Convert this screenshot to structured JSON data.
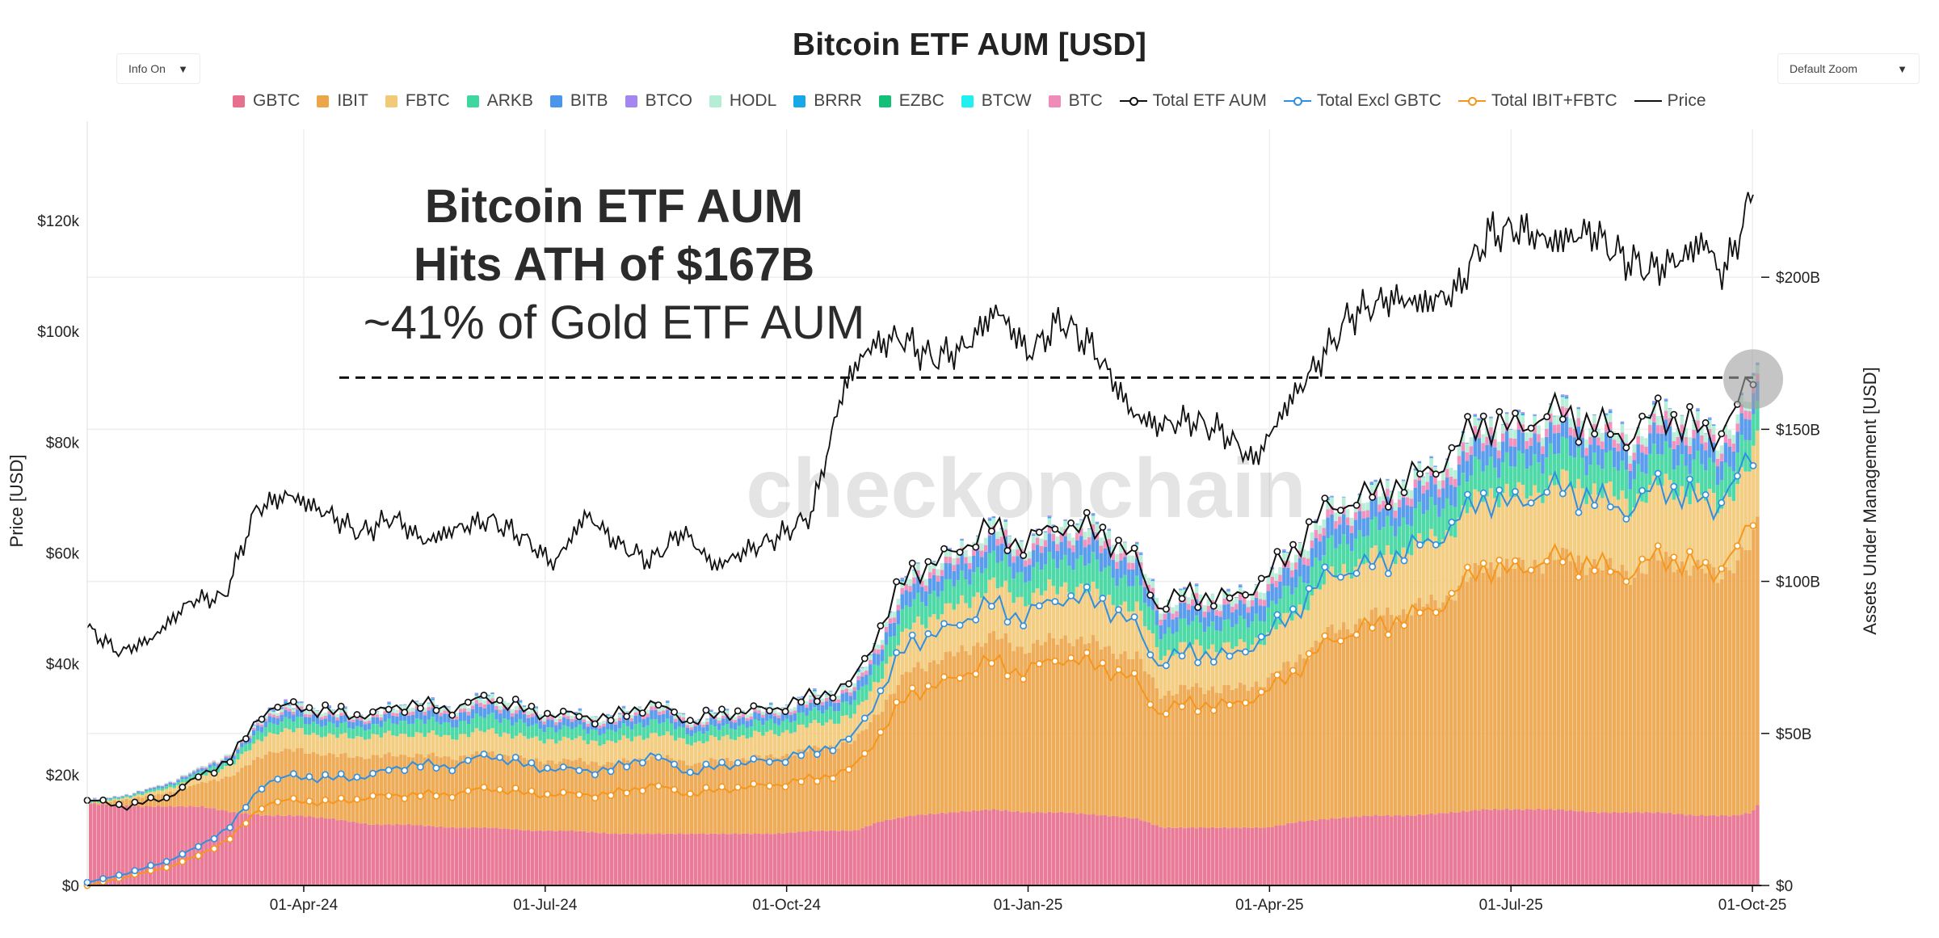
{
  "controls": {
    "info_toggle": "Info On",
    "zoom_select": "Default Zoom",
    "caret": "▼"
  },
  "watermark": "checkonchain",
  "chart_data": {
    "type": "area",
    "title": "Bitcoin ETF AUM [USD]",
    "annotation": {
      "line1": "Bitcoin ETF AUM",
      "line2": "Hits ATH of $167B",
      "line3": "~41% of Gold ETF AUM",
      "ath_value": 167
    },
    "x_ticks": [
      "01-Apr-24",
      "01-Jul-24",
      "01-Oct-24",
      "01-Jan-25",
      "01-Apr-25",
      "01-Jul-25",
      "01-Oct-25"
    ],
    "x_tick_months": [
      2.69,
      5.69,
      8.69,
      11.69,
      14.69,
      17.69,
      20.69
    ],
    "x_range_months": [
      0,
      20.8
    ],
    "left_axis": {
      "label": "Price [USD]",
      "range": [
        0,
        135000
      ],
      "ticks": [
        0,
        20000,
        40000,
        60000,
        80000,
        100000,
        120000
      ],
      "tick_labels": [
        "$0",
        "$20k",
        "$40k",
        "$60k",
        "$80k",
        "$100k",
        "$120k"
      ]
    },
    "right_axis": {
      "label": "Assets Under Management [USD]",
      "range": [
        0,
        246
      ],
      "ticks": [
        0,
        50,
        100,
        150,
        200
      ],
      "tick_labels": [
        "$0",
        "$50B",
        "$100B",
        "$150B",
        "$200B"
      ]
    },
    "legend": [
      {
        "name": "GBTC",
        "kind": "bar",
        "color": "#e8708f"
      },
      {
        "name": "IBIT",
        "kind": "bar",
        "color": "#eda54a"
      },
      {
        "name": "FBTC",
        "kind": "bar",
        "color": "#f2c977"
      },
      {
        "name": "ARKB",
        "kind": "bar",
        "color": "#3fd6a0"
      },
      {
        "name": "BITB",
        "kind": "bar",
        "color": "#4c95ec"
      },
      {
        "name": "BTCO",
        "kind": "bar",
        "color": "#a486f0"
      },
      {
        "name": "HODL",
        "kind": "bar",
        "color": "#b3eed5"
      },
      {
        "name": "BRRR",
        "kind": "bar",
        "color": "#18a8e8"
      },
      {
        "name": "EZBC",
        "kind": "bar",
        "color": "#14bf78"
      },
      {
        "name": "BTCW",
        "kind": "bar",
        "color": "#20f0f0"
      },
      {
        "name": "BTC",
        "kind": "bar",
        "color": "#f08ab8"
      },
      {
        "name": "Total ETF AUM",
        "kind": "line-dot",
        "color": "#111111"
      },
      {
        "name": "Total Excl GBTC",
        "kind": "line-dot",
        "color": "#2f8fe0"
      },
      {
        "name": "Total IBIT+FBTC",
        "kind": "line-dot",
        "color": "#f5961e"
      },
      {
        "name": "Price",
        "kind": "line",
        "color": "#111111"
      }
    ],
    "price_points": {
      "months": [
        0,
        0.4,
        0.8,
        1.3,
        1.7,
        2.1,
        2.5,
        3.0,
        3.4,
        3.8,
        4.2,
        4.6,
        5.0,
        5.4,
        5.8,
        6.2,
        6.6,
        7.0,
        7.4,
        7.8,
        8.2,
        8.6,
        9.0,
        9.4,
        9.7,
        10.1,
        10.5,
        10.9,
        11.3,
        11.7,
        12.1,
        12.5,
        13.0,
        13.3,
        13.7,
        14.1,
        14.5,
        14.9,
        15.3,
        15.7,
        16.2,
        16.6,
        17.0,
        17.4,
        17.8,
        18.2,
        18.7,
        19.0,
        19.4,
        19.8,
        20.1,
        20.3,
        20.5,
        20.6,
        20.7
      ],
      "usd": [
        46500,
        42000,
        44500,
        51500,
        52000,
        68000,
        70500,
        67000,
        63500,
        66500,
        62000,
        64500,
        66000,
        63000,
        58000,
        67000,
        61500,
        58500,
        64000,
        57500,
        60500,
        63000,
        67000,
        90000,
        97000,
        99000,
        95000,
        97000,
        104000,
        96000,
        102000,
        97000,
        85000,
        83000,
        84000,
        82000,
        76500,
        86500,
        94500,
        103000,
        106000,
        105000,
        107000,
        117500,
        118500,
        116000,
        118000,
        114000,
        111000,
        113000,
        116500,
        110000,
        116000,
        121000,
        125000
      ]
    },
    "aum_points": {
      "months": [
        0,
        0.5,
        1.0,
        1.4,
        1.8,
        2.2,
        2.6,
        3.0,
        3.5,
        4.0,
        4.5,
        5.0,
        5.5,
        6.0,
        6.5,
        7.0,
        7.5,
        8.0,
        8.5,
        9.0,
        9.5,
        9.8,
        10.2,
        10.7,
        11.2,
        11.6,
        12.1,
        12.6,
        13.0,
        13.3,
        13.7,
        14.2,
        14.6,
        15.0,
        15.4,
        15.9,
        16.4,
        16.9,
        17.3,
        17.7,
        18.2,
        18.7,
        19.1,
        19.5,
        19.9,
        20.2,
        20.4,
        20.6,
        20.7
      ],
      "total_b": [
        28,
        26,
        29,
        36,
        42,
        58,
        59,
        57,
        56,
        60,
        58,
        62,
        57,
        56,
        55,
        60,
        54,
        57,
        58,
        62,
        66,
        82,
        103,
        108,
        118,
        112,
        119,
        116,
        108,
        92,
        96,
        94,
        100,
        111,
        124,
        128,
        133,
        140,
        153,
        150,
        156,
        152,
        147,
        155,
        152,
        146,
        155,
        161,
        167
      ],
      "gbtc_b": [
        27,
        26,
        26,
        26,
        24,
        23,
        23,
        22,
        20,
        20,
        19,
        19,
        18,
        18,
        17,
        17,
        17,
        17,
        17,
        18,
        18,
        21,
        23,
        24,
        25,
        24,
        24,
        23,
        22,
        19,
        19,
        19,
        19,
        21,
        22,
        23,
        23,
        24,
        25,
        25,
        25,
        24,
        24,
        24,
        23,
        23,
        23,
        24,
        27
      ],
      "ibit_fbtc_b": [
        0,
        3,
        6,
        10,
        16,
        27,
        28,
        27,
        29,
        30,
        30,
        32,
        30,
        30,
        30,
        33,
        30,
        32,
        33,
        35,
        38,
        48,
        63,
        67,
        74,
        70,
        75,
        72,
        68,
        57,
        60,
        59,
        63,
        70,
        80,
        85,
        88,
        93,
        105,
        103,
        108,
        106,
        102,
        108,
        106,
        102,
        109,
        114,
        120
      ],
      "excl_gbtc_b": [
        1,
        4,
        8,
        13,
        20,
        34,
        36,
        35,
        36,
        40,
        39,
        43,
        39,
        38,
        38,
        43,
        37,
        40,
        41,
        44,
        48,
        61,
        80,
        84,
        93,
        88,
        95,
        93,
        86,
        73,
        77,
        75,
        81,
        90,
        102,
        105,
        110,
        116,
        128,
        125,
        131,
        128,
        123,
        131,
        129,
        123,
        132,
        137,
        140
      ]
    }
  }
}
